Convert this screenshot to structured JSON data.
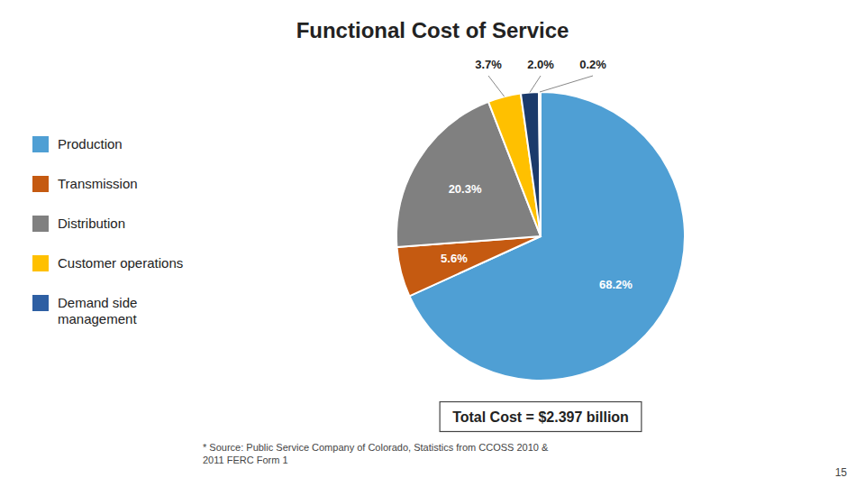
{
  "chart_data": {
    "type": "pie",
    "title": "Functional Cost of Service",
    "categories": [
      "Production",
      "Transmission",
      "Distribution",
      "Customer operations",
      null,
      "Demand side\nmanagement"
    ],
    "values": [
      68.2,
      5.6,
      20.3,
      3.7,
      2.0,
      0.2
    ],
    "value_labels": [
      "68.2%",
      "5.6%",
      "20.3%",
      "3.7%",
      "2.0%",
      "0.2%"
    ],
    "colors": [
      "#4f9fd4",
      "#c55a11",
      "#808080",
      "#ffc000",
      "#1b3a6b",
      "#2e5fa3"
    ],
    "data_labels": true,
    "legend": "left",
    "annotations": [
      "Total Cost = $2.397 billion",
      "* Source: Public Service Company of Colorado, Statistics from CCOSS 2010 &\n2011 FERC Form 1",
      "15"
    ]
  }
}
